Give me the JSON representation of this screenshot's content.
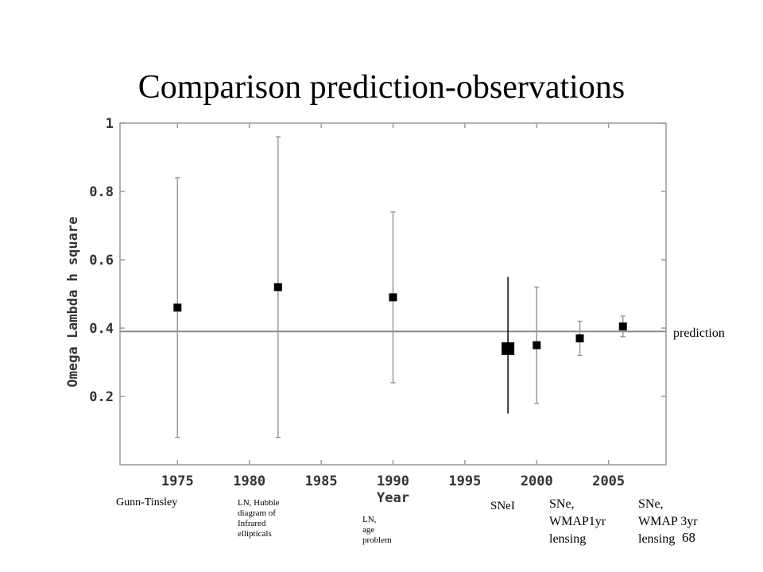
{
  "slide": {
    "title": "Comparison prediction-observations",
    "page_number": "68"
  },
  "chart_data": {
    "type": "scatter",
    "title": "",
    "xlabel": "Year",
    "ylabel": "Omega Lambda h square",
    "xlim": [
      1971,
      2009
    ],
    "ylim": [
      0,
      1
    ],
    "xticks": [
      1975,
      1980,
      1985,
      1990,
      1995,
      2000,
      2005
    ],
    "yticks": [
      0.2,
      0.4,
      0.6,
      0.8,
      1
    ],
    "ytick_labels": [
      "0.2",
      "0.4",
      "0.6",
      "0.8",
      "1"
    ],
    "prediction": {
      "value": 0.39,
      "label": "prediction"
    },
    "points": [
      {
        "x": 1975,
        "y": 0.46,
        "low": 0.08,
        "high": 0.84,
        "label": "Gunn-Tinsley"
      },
      {
        "x": 1982,
        "y": 0.52,
        "low": 0.08,
        "high": 0.96,
        "label": "LN, Hubble\ndiagram of\nInfrared\nellipticals"
      },
      {
        "x": 1990,
        "y": 0.49,
        "low": 0.24,
        "high": 0.74,
        "label": "LN,\nage\nproblem"
      },
      {
        "x": 1998,
        "y": 0.34,
        "low": 0.15,
        "high": 0.55,
        "label": "SNeI",
        "highlight": true
      },
      {
        "x": 2000,
        "y": 0.35,
        "low": 0.18,
        "high": 0.52,
        "label": "SNe,\nWMAP1yr\nlensing"
      },
      {
        "x": 2003,
        "y": 0.37,
        "low": 0.32,
        "high": 0.42,
        "label": ""
      },
      {
        "x": 2006,
        "y": 0.405,
        "low": 0.375,
        "high": 0.435,
        "label": "SNe,\nWMAP 3yr\nlensing"
      }
    ]
  }
}
